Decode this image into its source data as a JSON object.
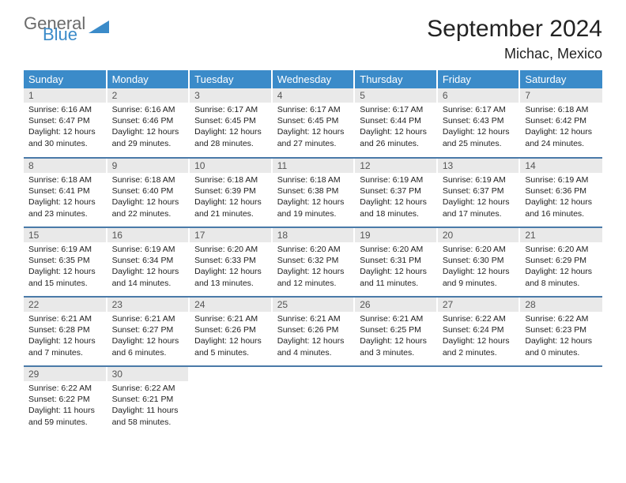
{
  "logo": {
    "main": "General",
    "sub": "Blue",
    "main_color": "#6b6b6b",
    "sub_color": "#3b8bc9"
  },
  "title": {
    "month": "September 2024",
    "location": "Michac, Mexico"
  },
  "header_bg": "#3b8bc9",
  "daynum_bg": "#e9e9e9",
  "border_color": "#4a7aa8",
  "weekdays": [
    "Sunday",
    "Monday",
    "Tuesday",
    "Wednesday",
    "Thursday",
    "Friday",
    "Saturday"
  ],
  "days": [
    {
      "n": 1,
      "sr": "6:16 AM",
      "ss": "6:47 PM",
      "dl": "12 hours and 30 minutes."
    },
    {
      "n": 2,
      "sr": "6:16 AM",
      "ss": "6:46 PM",
      "dl": "12 hours and 29 minutes."
    },
    {
      "n": 3,
      "sr": "6:17 AM",
      "ss": "6:45 PM",
      "dl": "12 hours and 28 minutes."
    },
    {
      "n": 4,
      "sr": "6:17 AM",
      "ss": "6:45 PM",
      "dl": "12 hours and 27 minutes."
    },
    {
      "n": 5,
      "sr": "6:17 AM",
      "ss": "6:44 PM",
      "dl": "12 hours and 26 minutes."
    },
    {
      "n": 6,
      "sr": "6:17 AM",
      "ss": "6:43 PM",
      "dl": "12 hours and 25 minutes."
    },
    {
      "n": 7,
      "sr": "6:18 AM",
      "ss": "6:42 PM",
      "dl": "12 hours and 24 minutes."
    },
    {
      "n": 8,
      "sr": "6:18 AM",
      "ss": "6:41 PM",
      "dl": "12 hours and 23 minutes."
    },
    {
      "n": 9,
      "sr": "6:18 AM",
      "ss": "6:40 PM",
      "dl": "12 hours and 22 minutes."
    },
    {
      "n": 10,
      "sr": "6:18 AM",
      "ss": "6:39 PM",
      "dl": "12 hours and 21 minutes."
    },
    {
      "n": 11,
      "sr": "6:18 AM",
      "ss": "6:38 PM",
      "dl": "12 hours and 19 minutes."
    },
    {
      "n": 12,
      "sr": "6:19 AM",
      "ss": "6:37 PM",
      "dl": "12 hours and 18 minutes."
    },
    {
      "n": 13,
      "sr": "6:19 AM",
      "ss": "6:37 PM",
      "dl": "12 hours and 17 minutes."
    },
    {
      "n": 14,
      "sr": "6:19 AM",
      "ss": "6:36 PM",
      "dl": "12 hours and 16 minutes."
    },
    {
      "n": 15,
      "sr": "6:19 AM",
      "ss": "6:35 PM",
      "dl": "12 hours and 15 minutes."
    },
    {
      "n": 16,
      "sr": "6:19 AM",
      "ss": "6:34 PM",
      "dl": "12 hours and 14 minutes."
    },
    {
      "n": 17,
      "sr": "6:20 AM",
      "ss": "6:33 PM",
      "dl": "12 hours and 13 minutes."
    },
    {
      "n": 18,
      "sr": "6:20 AM",
      "ss": "6:32 PM",
      "dl": "12 hours and 12 minutes."
    },
    {
      "n": 19,
      "sr": "6:20 AM",
      "ss": "6:31 PM",
      "dl": "12 hours and 11 minutes."
    },
    {
      "n": 20,
      "sr": "6:20 AM",
      "ss": "6:30 PM",
      "dl": "12 hours and 9 minutes."
    },
    {
      "n": 21,
      "sr": "6:20 AM",
      "ss": "6:29 PM",
      "dl": "12 hours and 8 minutes."
    },
    {
      "n": 22,
      "sr": "6:21 AM",
      "ss": "6:28 PM",
      "dl": "12 hours and 7 minutes."
    },
    {
      "n": 23,
      "sr": "6:21 AM",
      "ss": "6:27 PM",
      "dl": "12 hours and 6 minutes."
    },
    {
      "n": 24,
      "sr": "6:21 AM",
      "ss": "6:26 PM",
      "dl": "12 hours and 5 minutes."
    },
    {
      "n": 25,
      "sr": "6:21 AM",
      "ss": "6:26 PM",
      "dl": "12 hours and 4 minutes."
    },
    {
      "n": 26,
      "sr": "6:21 AM",
      "ss": "6:25 PM",
      "dl": "12 hours and 3 minutes."
    },
    {
      "n": 27,
      "sr": "6:22 AM",
      "ss": "6:24 PM",
      "dl": "12 hours and 2 minutes."
    },
    {
      "n": 28,
      "sr": "6:22 AM",
      "ss": "6:23 PM",
      "dl": "12 hours and 0 minutes."
    },
    {
      "n": 29,
      "sr": "6:22 AM",
      "ss": "6:22 PM",
      "dl": "11 hours and 59 minutes."
    },
    {
      "n": 30,
      "sr": "6:22 AM",
      "ss": "6:21 PM",
      "dl": "11 hours and 58 minutes."
    }
  ],
  "labels": {
    "sunrise": "Sunrise:",
    "sunset": "Sunset:",
    "daylight": "Daylight:"
  }
}
